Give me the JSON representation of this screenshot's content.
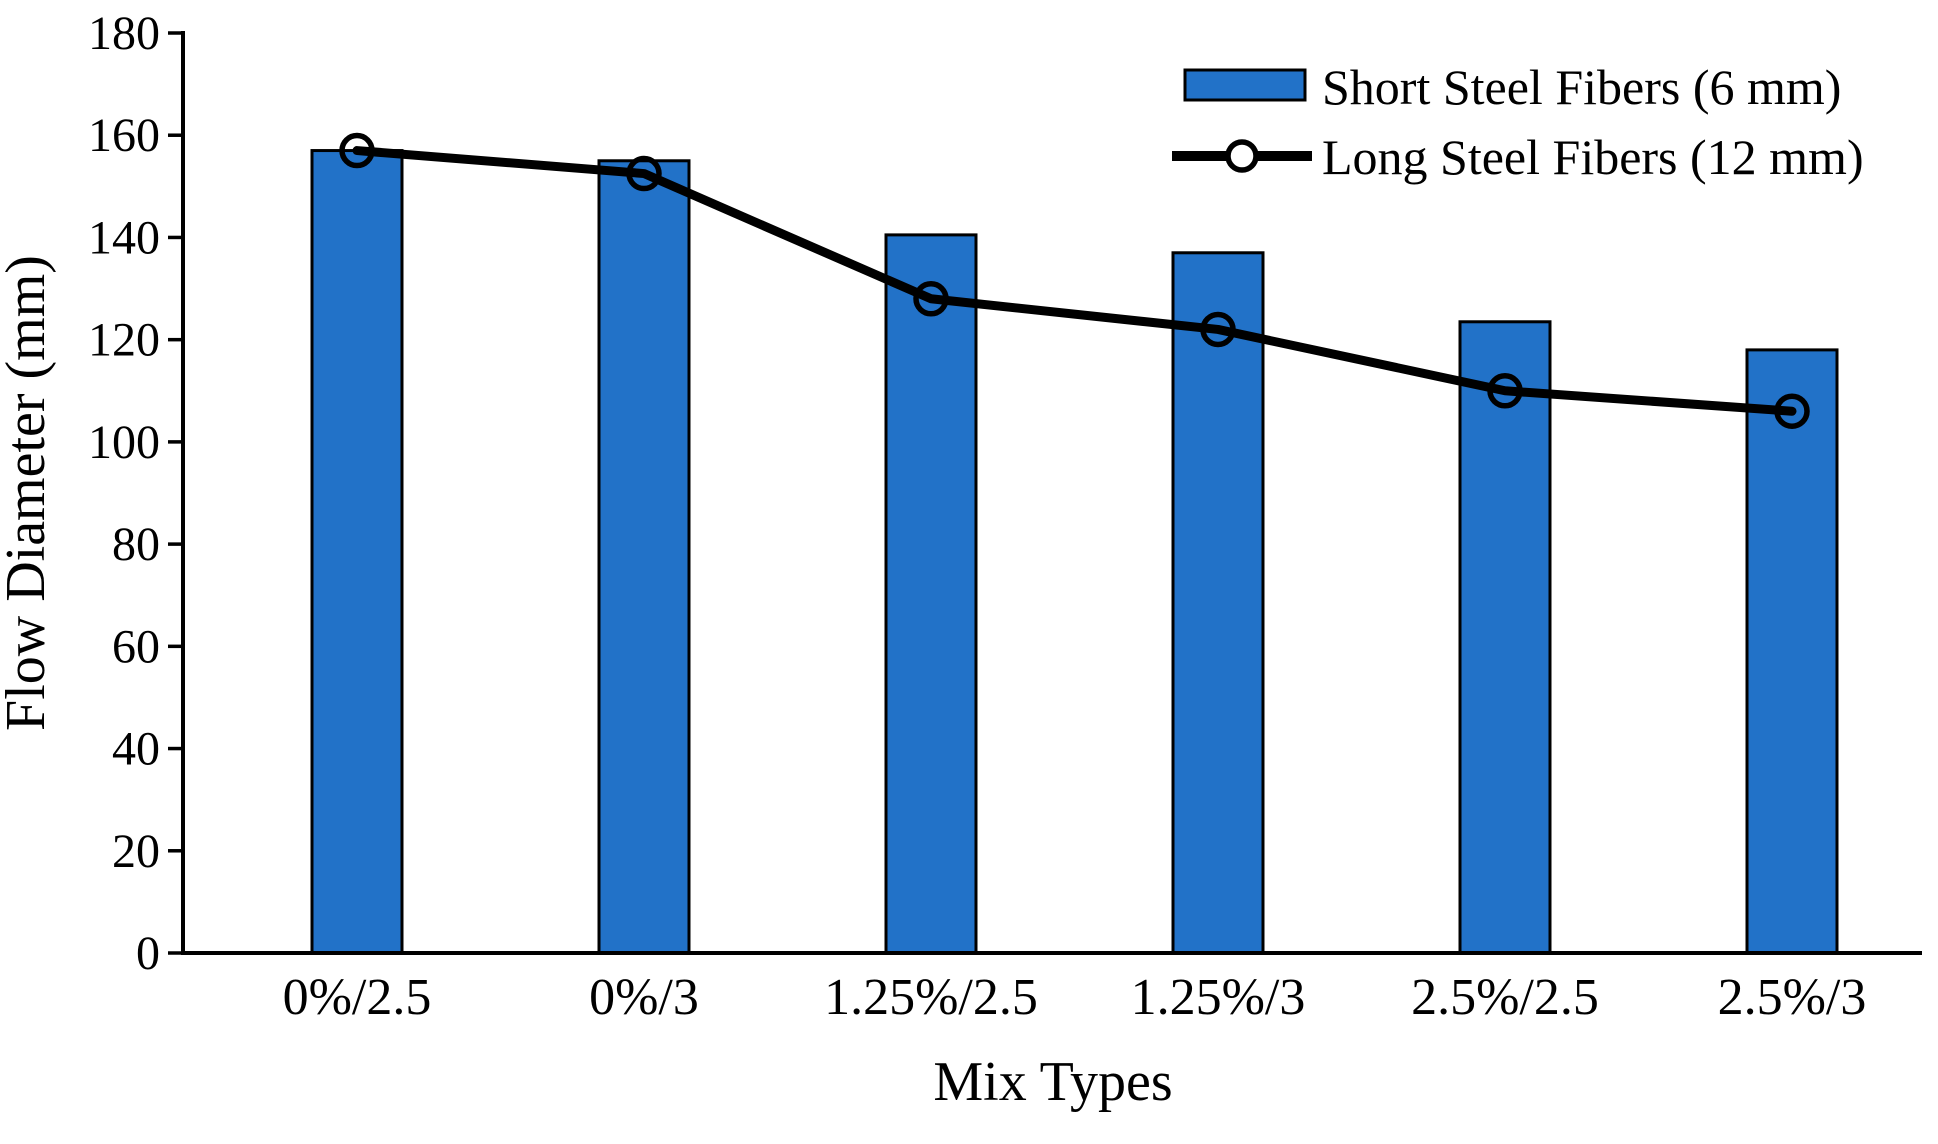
{
  "chart_data": {
    "type": "bar",
    "subtype": "bar-line-combo",
    "title": "",
    "categories": [
      "0%/2.5",
      "0%/3",
      "1.25%/2.5",
      "1.25%/3",
      "2.5%/2.5",
      "2.5%/3"
    ],
    "series": [
      {
        "name": "Short Steel Fibers (6 mm)",
        "type": "bar",
        "color": "#2272c8",
        "border_color": "#000000",
        "values": [
          157,
          155,
          140.5,
          137,
          123.5,
          118
        ]
      },
      {
        "name": "Long Steel Fibers (12 mm)",
        "type": "line",
        "color": "#000000",
        "marker": "open-circle",
        "values": [
          157,
          152.5,
          128,
          122,
          110,
          106
        ]
      }
    ],
    "xlabel": "Mix Types",
    "ylabel": "Flow Diameter (mm)",
    "ylim": [
      0,
      180
    ],
    "yticks": [
      0,
      20,
      40,
      60,
      80,
      100,
      120,
      140,
      160,
      180
    ],
    "grid": false,
    "legend_position": "top-right"
  }
}
